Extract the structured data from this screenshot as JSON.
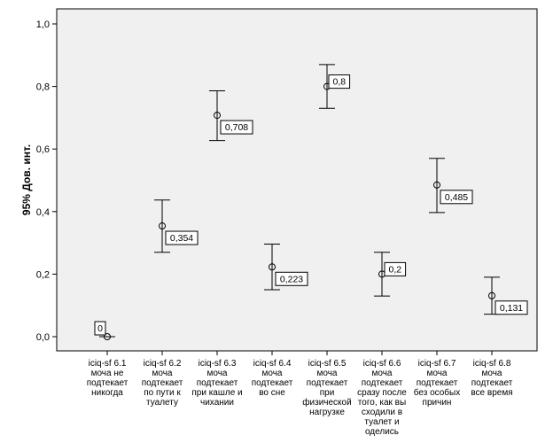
{
  "chart_data": {
    "type": "scatter",
    "subtype": "error-bar",
    "ylabel": "95% Дов. инт.",
    "xlabel": "",
    "ylim": [
      0.0,
      1.0
    ],
    "y_ticks": [
      "0,0",
      "0,2",
      "0,4",
      "0,6",
      "0,8",
      "1,0"
    ],
    "y_tick_values": [
      0.0,
      0.2,
      0.4,
      0.6,
      0.8,
      1.0
    ],
    "grid": false,
    "legend": "none",
    "background_color": "#f0f0f0",
    "categories": [
      [
        "iciq-sf 6.1",
        "моча не",
        "подтекает",
        "никогда"
      ],
      [
        "iciq-sf 6.2",
        "моча",
        "подтекает",
        "по пути к",
        "туалету"
      ],
      [
        "iciq-sf 6.3",
        "моча",
        "подтекает",
        "при кашле и",
        "чихании"
      ],
      [
        "iciq-sf 6.4",
        "моча",
        "подтекает",
        "во сне"
      ],
      [
        "iciq-sf 6.5",
        "моча",
        "подтекает",
        "при",
        "физической",
        "нагрузке"
      ],
      [
        "iciq-sf 6.6",
        "моча",
        "подтекает",
        "сразу после",
        "того, как вы",
        "сходили в",
        "туалет и",
        "оделись"
      ],
      [
        "iciq-sf 6.7",
        "моча",
        "подтекает",
        "без особых",
        "причин"
      ],
      [
        "iciq-sf 6.8",
        "моча",
        "подтекает",
        "все время"
      ]
    ],
    "points": [
      {
        "value": 0.0,
        "lower": 0.0,
        "upper": 0.0,
        "label": "0"
      },
      {
        "value": 0.354,
        "lower": 0.27,
        "upper": 0.437,
        "label": "0,354"
      },
      {
        "value": 0.708,
        "lower": 0.627,
        "upper": 0.786,
        "label": "0,708"
      },
      {
        "value": 0.223,
        "lower": 0.15,
        "upper": 0.296,
        "label": "0,223"
      },
      {
        "value": 0.8,
        "lower": 0.73,
        "upper": 0.87,
        "label": "0,8"
      },
      {
        "value": 0.2,
        "lower": 0.13,
        "upper": 0.27,
        "label": "0,2"
      },
      {
        "value": 0.485,
        "lower": 0.397,
        "upper": 0.57,
        "label": "0,485"
      },
      {
        "value": 0.131,
        "lower": 0.072,
        "upper": 0.19,
        "label": "0,131"
      }
    ]
  }
}
